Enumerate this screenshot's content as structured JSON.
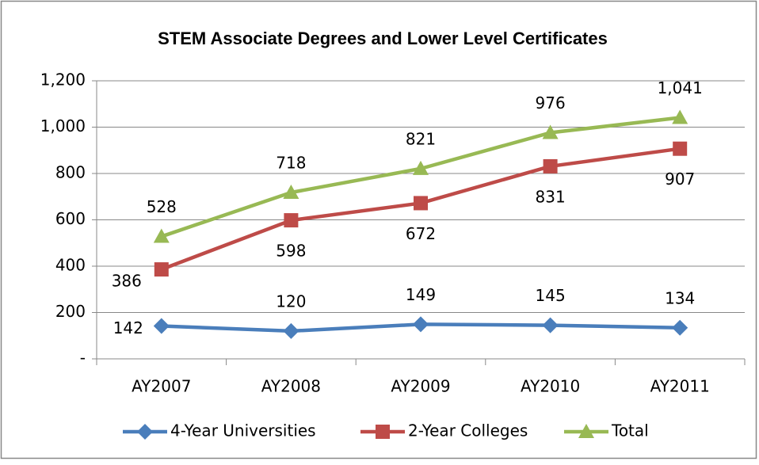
{
  "chart_data": {
    "type": "line",
    "title": "STEM Associate Degrees and Lower Level Certificates",
    "categories": [
      "AY2007",
      "AY2008",
      "AY2009",
      "AY2010",
      "AY2011"
    ],
    "series": [
      {
        "name": "4-Year Universities",
        "color": "#4a7ebb",
        "marker": "diamond",
        "values": [
          142,
          120,
          149,
          145,
          134
        ]
      },
      {
        "name": "2-Year Colleges",
        "color": "#be4b48",
        "marker": "square",
        "values": [
          386,
          598,
          672,
          831,
          907
        ]
      },
      {
        "name": "Total",
        "color": "#98b954",
        "marker": "triangle",
        "values": [
          528,
          718,
          821,
          976,
          1041
        ],
        "value_labels": [
          "528",
          "718",
          "821",
          "976",
          "1,041"
        ]
      }
    ],
    "ylim": [
      0,
      1200
    ],
    "yticks": [
      {
        "value": 0,
        "label": "-"
      },
      200,
      400,
      600,
      800,
      {
        "value": 1000,
        "label": "1,000"
      },
      {
        "value": 1200,
        "label": "1,200"
      }
    ],
    "grid": true,
    "legend": "bottom"
  }
}
